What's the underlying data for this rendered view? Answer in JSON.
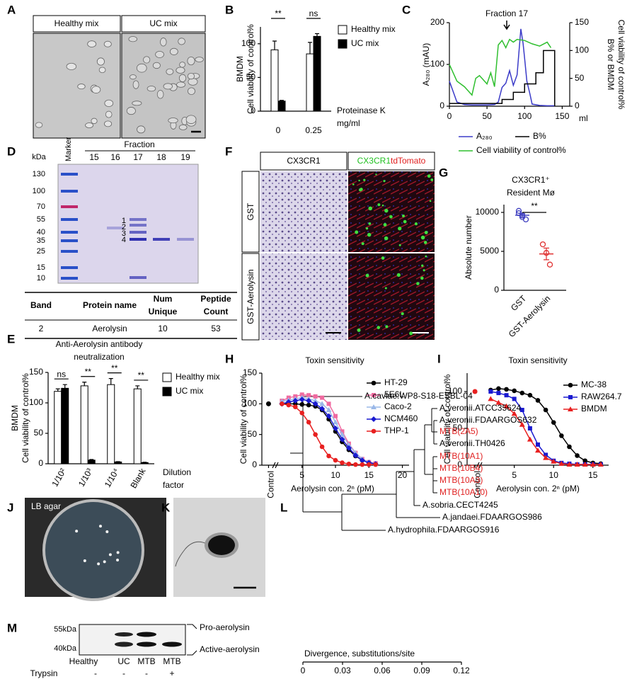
{
  "panel_labels": [
    "A",
    "B",
    "C",
    "D",
    "E",
    "F",
    "G",
    "H",
    "I",
    "J",
    "K",
    "L",
    "M"
  ],
  "panel_a": {
    "headers": [
      "Healthy mix",
      "UC mix"
    ]
  },
  "chart_data": [
    {
      "type": "bar",
      "ylabel": [
        "BMDM",
        "Cell viability of control%"
      ],
      "xlabel": [
        "Proteinase K",
        "mg/ml"
      ],
      "categories": [
        "0",
        "0.25"
      ],
      "series": [
        {
          "name": "Healthy mix",
          "color": "#ffffff",
          "values": [
            91,
            85
          ],
          "errors": [
            13,
            17
          ]
        },
        {
          "name": "UC mix",
          "color": "#000000",
          "values": [
            15,
            111
          ],
          "errors": [
            1,
            4
          ]
        }
      ],
      "ylim": [
        0,
        125
      ],
      "yticks": [
        0,
        50,
        100
      ],
      "annotations": [
        "**",
        "ns"
      ]
    },
    {
      "type": "line",
      "ylabel": "A₂₈₀ (mAU)",
      "y2label": [
        "B% or BMDM",
        "Cell viability of control%"
      ],
      "xlabel": "ml",
      "annotation": "Fraction 17",
      "xlim": [
        0,
        160
      ],
      "xticks": [
        0,
        50,
        100,
        150
      ],
      "ylim": [
        0,
        200
      ],
      "yticks": [
        0,
        100,
        200
      ],
      "y2lim": [
        0,
        150
      ],
      "y2ticks": [
        0,
        50,
        100,
        150
      ],
      "series": [
        {
          "name": "A₂₈₀",
          "color": "#3b3bc8",
          "x": [
            0,
            10,
            20,
            30,
            40,
            50,
            60,
            65,
            70,
            75,
            80,
            85,
            90,
            95,
            98,
            100,
            103,
            107,
            110,
            120,
            130,
            140
          ],
          "values": [
            60,
            10,
            4,
            3,
            3,
            3,
            4,
            10,
            45,
            55,
            85,
            50,
            75,
            185,
            150,
            115,
            60,
            30,
            5,
            2,
            1,
            1
          ]
        },
        {
          "name": "B%",
          "color": "#000000",
          "axis": "y2",
          "x": [
            0,
            70,
            70,
            85,
            85,
            100,
            100,
            115,
            115,
            125,
            125,
            140,
            140
          ],
          "values": [
            5,
            5,
            12,
            12,
            25,
            25,
            40,
            40,
            60,
            60,
            100,
            100,
            0
          ]
        },
        {
          "name": "Cell viability of control%",
          "color": "#2fbf2f",
          "axis": "y2",
          "x": [
            0,
            5,
            10,
            20,
            30,
            35,
            40,
            50,
            55,
            60,
            65,
            70,
            75,
            80,
            85,
            90,
            100,
            110,
            120,
            130,
            135
          ],
          "values": [
            75,
            60,
            45,
            35,
            20,
            50,
            55,
            40,
            60,
            35,
            110,
            118,
            105,
            120,
            115,
            120,
            118,
            112,
            108,
            115,
            105
          ]
        }
      ]
    },
    {
      "type": "bar",
      "title": [
        "Anti-Aerolysin antibody",
        "neutralization"
      ],
      "ylabel": [
        "BMDM",
        "Cell viability of control%"
      ],
      "xlabel": [
        "Dilution",
        "factor"
      ],
      "categories": [
        "1/10²",
        "1/10³",
        "1/10⁴",
        "Blank"
      ],
      "series": [
        {
          "name": "Healthy mix",
          "color": "#ffffff",
          "values": [
            119,
            128,
            130,
            123
          ],
          "errors": [
            4,
            6,
            10,
            5
          ]
        },
        {
          "name": "UC mix",
          "color": "#000000",
          "values": [
            124,
            6,
            3,
            2
          ],
          "errors": [
            6,
            1,
            0.5,
            0.5
          ]
        }
      ],
      "ylim": [
        0,
        150
      ],
      "yticks": [
        0,
        50,
        100,
        150
      ],
      "annotations": [
        "ns",
        "**",
        "**",
        "**"
      ]
    },
    {
      "type": "dot",
      "title": [
        "CX3CR1⁺",
        "Resident Mø"
      ],
      "ylabel": "Absolute number",
      "categories": [
        "GST",
        "GST-Aerolysin"
      ],
      "colors": [
        "#4040c0",
        "#e03030"
      ],
      "values": [
        [
          9900,
          9400,
          9100,
          10200,
          9600
        ],
        [
          5900,
          4800,
          3300
        ]
      ],
      "means": [
        9640,
        4670
      ],
      "errors": [
        200,
        750
      ],
      "ylim": [
        0,
        11000
      ],
      "yticks": [
        0,
        5000,
        10000
      ],
      "annotation": "**"
    },
    {
      "type": "line",
      "title": "Toxin sensitivity",
      "ylabel": "Cell viability of control%",
      "xlabel": "Aerolysin con. 2ⁿ (pM)",
      "xlim": [
        -1,
        21
      ],
      "xticks": [
        {
          "value": 0,
          "label": "Control"
        },
        5,
        10,
        15,
        20
      ],
      "ylim": [
        0,
        150
      ],
      "yticks": [
        0,
        50,
        100,
        150
      ],
      "control_value": 100,
      "control_color": "#000000",
      "x": [
        2,
        3,
        4,
        5,
        6,
        7,
        8,
        9,
        10,
        11,
        12,
        13,
        14,
        15,
        16
      ],
      "series": [
        {
          "name": "HT-29",
          "color": "#000000",
          "values": [
            100,
            100,
            100,
            99,
            98,
            96,
            90,
            75,
            55,
            38,
            25,
            15,
            8,
            4,
            2
          ]
        },
        {
          "name": "5E6L",
          "color": "#f06aa0",
          "values": [
            105,
            110,
            112,
            115,
            114,
            112,
            110,
            100,
            80,
            55,
            35,
            20,
            10,
            5,
            3
          ]
        },
        {
          "name": "Caco-2",
          "color": "#9ab8e8",
          "values": [
            104,
            106,
            108,
            110,
            108,
            105,
            100,
            90,
            70,
            50,
            33,
            20,
            10,
            5,
            2
          ]
        },
        {
          "name": "NCM460",
          "color": "#1a1ad0",
          "values": [
            100,
            103,
            105,
            107,
            105,
            100,
            92,
            80,
            60,
            42,
            28,
            16,
            8,
            4,
            2
          ]
        },
        {
          "name": "THP-1",
          "color": "#e82020",
          "values": [
            100,
            98,
            95,
            85,
            70,
            50,
            30,
            15,
            8,
            4,
            2,
            1,
            1,
            1,
            1
          ]
        }
      ]
    },
    {
      "type": "line",
      "title": "Toxin sensitivity",
      "ylabel": "Cell viability of control%",
      "xlabel": "Aerolysin con. 2ⁿ (pM)",
      "xlim": [
        -1,
        17
      ],
      "xticks": [
        {
          "value": 0,
          "label": "Control"
        },
        5,
        10,
        15
      ],
      "ylim": [
        0,
        125
      ],
      "yticks": [
        0,
        50,
        100
      ],
      "control_value": 100,
      "control_color": "#e82020",
      "x": [
        2,
        3,
        4,
        5,
        6,
        7,
        8,
        9,
        10,
        11,
        12,
        13,
        14,
        15,
        16
      ],
      "series": [
        {
          "name": "MC-38",
          "color": "#000000",
          "values": [
            102,
            104,
            103,
            101,
            98,
            95,
            88,
            75,
            58,
            40,
            25,
            13,
            6,
            3,
            2
          ]
        },
        {
          "name": "RAW264.7",
          "color": "#1a1ad0",
          "values": [
            100,
            98,
            95,
            90,
            75,
            50,
            28,
            14,
            6,
            3,
            2,
            1,
            1,
            1,
            1
          ]
        },
        {
          "name": "BMDM",
          "color": "#e82020",
          "values": [
            90,
            85,
            80,
            70,
            55,
            35,
            20,
            10,
            5,
            2,
            1,
            1,
            1,
            1,
            1
          ]
        }
      ]
    }
  ],
  "gel": {
    "title": "Fraction",
    "marker": "Marker",
    "unit": "kDa",
    "lanes": [
      "15",
      "16",
      "17",
      "18",
      "19"
    ],
    "ladder": [
      130,
      100,
      70,
      55,
      40,
      35,
      25,
      15,
      10
    ],
    "bands": [
      "1",
      "2",
      "3",
      "4"
    ]
  },
  "table": {
    "header": [
      [
        "Band"
      ],
      [
        "Protein name"
      ],
      [
        "Num",
        "Unique"
      ],
      [
        "Peptide",
        "Count"
      ]
    ],
    "rows": [
      [
        "2",
        "Aerolysin",
        "10",
        "53"
      ]
    ]
  },
  "panel_f": {
    "header": "CX3CR1",
    "merge_header": [
      "CX3CR1",
      "tdTomato"
    ],
    "rows": [
      "GST",
      "GST-Aerolysin"
    ]
  },
  "panel_j": {
    "label": "LB agar"
  },
  "tree": {
    "leaves": [
      {
        "name": "A.caviae.WP8-S18-ESBL-04",
        "color": "#000000"
      },
      {
        "name": "A.veronii.ATCC35624",
        "color": "#000000"
      },
      {
        "name": "A.veronii.FDAARGOS632",
        "color": "#000000"
      },
      {
        "name": "MTB(2A5)",
        "color": "#e02020"
      },
      {
        "name": "A.veronii.TH0426",
        "color": "#000000"
      },
      {
        "name": "MTB(10A1)",
        "color": "#e02020"
      },
      {
        "name": "MTB(10B4)",
        "color": "#e02020"
      },
      {
        "name": "MTB(10A3)",
        "color": "#e02020"
      },
      {
        "name": "MTB(10A10)",
        "color": "#e02020"
      },
      {
        "name": "A.sobria.CECT4245",
        "color": "#000000"
      },
      {
        "name": "A.jandaei.FDAARGOS986",
        "color": "#000000"
      },
      {
        "name": "A.hydrophila.FDAARGOS916",
        "color": "#000000"
      }
    ],
    "xlabel": "Divergence, substitutions/site",
    "xlim": [
      0,
      0.12
    ],
    "xticks": [
      0,
      0.03,
      0.06,
      0.09,
      0.12
    ]
  },
  "blot": {
    "markers": [
      "55kDa",
      "40kDa"
    ],
    "bands": [
      "Pro-aerolysin",
      "Active-aerolysin"
    ],
    "lanes": [
      "Healthy",
      "UC",
      "MTB",
      "MTB"
    ],
    "treatment": "Trypsin",
    "treatment_signs": [
      "-",
      "-",
      "-",
      "+"
    ]
  }
}
